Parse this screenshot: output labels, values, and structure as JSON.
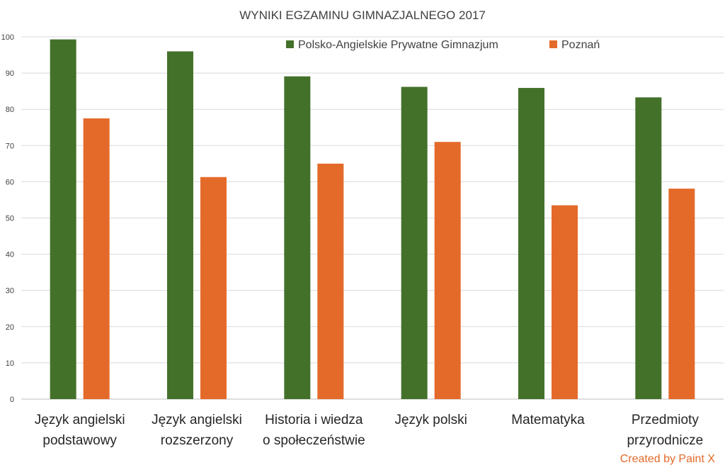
{
  "chart_data": {
    "type": "bar",
    "title": "WYNIKI EGZAMINU GIMNAZJALNEGO 2017",
    "categories": [
      [
        "Język angielski",
        "podstawowy"
      ],
      [
        "Język angielski",
        "rozszerzony"
      ],
      [
        "Historia i wiedza",
        "o społeczeństwie"
      ],
      [
        "Język polski"
      ],
      [
        "Matematyka"
      ],
      [
        "Przedmioty",
        "przyrodnicze"
      ]
    ],
    "series": [
      {
        "name": "Polsko-Angielskie Prywatne Gimnazjum",
        "color": "#44712a",
        "values": [
          99.3,
          96.0,
          89.1,
          86.2,
          85.9,
          83.3
        ]
      },
      {
        "name": "Poznań",
        "color": "#e46a2a",
        "values": [
          77.5,
          61.3,
          65.0,
          71.0,
          53.5,
          58.1
        ]
      }
    ],
    "ylim": [
      0,
      100
    ],
    "yticks": [
      0,
      10,
      20,
      30,
      40,
      50,
      60,
      70,
      80,
      90,
      100
    ],
    "grid": true,
    "legend_position": "top"
  },
  "credit": {
    "text": "Created by Paint X",
    "color": "#e46a2a"
  }
}
